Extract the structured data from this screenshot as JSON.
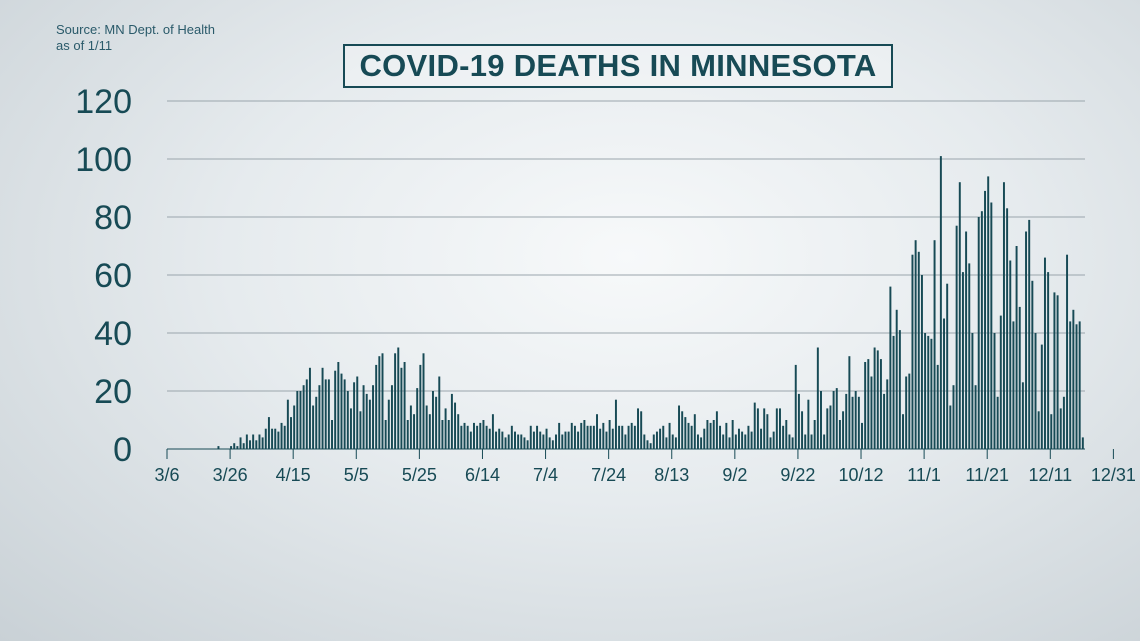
{
  "source": {
    "line1": "Source: MN Dept. of Health",
    "line2": "as of 1/11"
  },
  "chart_data": {
    "type": "bar",
    "title": "COVID-19 DEATHS IN MINNESOTA",
    "xlabel": "",
    "ylabel": "",
    "ylim": [
      0,
      120
    ],
    "yticks": [
      0,
      20,
      40,
      60,
      80,
      100,
      120
    ],
    "grid": true,
    "bar_color": "#174a55",
    "tick_labels": [
      "3/6",
      "3/26",
      "4/15",
      "5/5",
      "5/25",
      "6/14",
      "7/4",
      "7/24",
      "8/13",
      "9/2",
      "9/22",
      "10/12",
      "11/1",
      "11/21",
      "12/11",
      "12/31"
    ],
    "start_date": "3/6",
    "values": [
      0,
      0,
      0,
      0,
      0,
      0,
      0,
      0,
      0,
      0,
      0,
      0,
      0,
      0,
      0,
      0,
      1,
      0,
      0,
      0,
      1,
      2,
      1,
      4,
      2,
      5,
      3,
      5,
      3,
      5,
      4,
      7,
      11,
      7,
      7,
      6,
      9,
      8,
      17,
      11,
      15,
      20,
      20,
      22,
      24,
      28,
      15,
      18,
      22,
      28,
      24,
      24,
      10,
      27,
      30,
      26,
      24,
      20,
      14,
      23,
      25,
      13,
      22,
      19,
      17,
      22,
      29,
      32,
      33,
      10,
      17,
      22,
      33,
      35,
      28,
      30,
      10,
      15,
      12,
      21,
      29,
      33,
      15,
      12,
      20,
      18,
      25,
      10,
      14,
      10,
      19,
      16,
      12,
      8,
      9,
      8,
      6,
      9,
      8,
      9,
      10,
      8,
      7,
      12,
      6,
      7,
      6,
      4,
      5,
      8,
      6,
      5,
      5,
      4,
      3,
      8,
      6,
      8,
      6,
      5,
      7,
      4,
      3,
      5,
      9,
      5,
      6,
      6,
      9,
      8,
      6,
      9,
      10,
      8,
      8,
      8,
      12,
      7,
      9,
      6,
      10,
      7,
      17,
      8,
      8,
      5,
      8,
      9,
      8,
      14,
      13,
      5,
      3,
      2,
      5,
      6,
      7,
      8,
      4,
      9,
      5,
      4,
      15,
      13,
      11,
      9,
      8,
      12,
      5,
      4,
      7,
      10,
      9,
      10,
      13,
      8,
      5,
      9,
      4,
      10,
      5,
      7,
      6,
      5,
      8,
      6,
      16,
      14,
      7,
      14,
      12,
      4,
      6,
      14,
      14,
      8,
      10,
      5,
      4,
      29,
      19,
      13,
      5,
      17,
      5,
      10,
      35,
      20,
      5,
      14,
      15,
      20,
      21,
      10,
      13,
      19,
      32,
      18,
      20,
      18,
      9,
      30,
      31,
      25,
      35,
      34,
      31,
      19,
      24,
      56,
      39,
      48,
      41,
      12,
      25,
      26,
      67,
      72,
      68,
      60,
      40,
      39,
      38,
      72,
      29,
      101,
      45,
      57,
      15,
      22,
      77,
      92,
      61,
      75,
      64,
      40,
      22,
      80,
      82,
      89,
      94,
      85,
      40,
      18,
      46,
      92,
      83,
      65,
      44,
      70,
      49,
      23,
      75,
      79,
      58,
      40,
      13,
      36,
      66,
      61,
      12,
      54,
      53,
      14,
      18,
      67,
      44,
      48,
      43,
      44,
      4
    ]
  }
}
